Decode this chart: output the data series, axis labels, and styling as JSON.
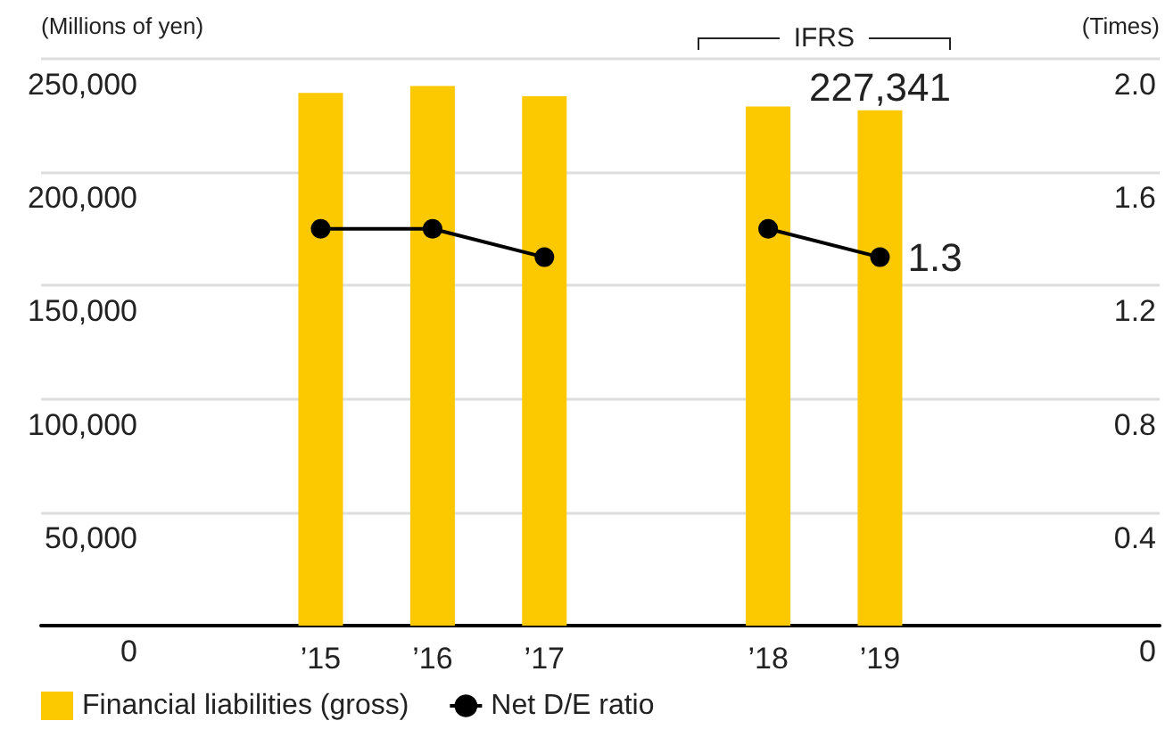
{
  "chart_data": {
    "type": "bar",
    "ylabel": "(Millions of yen)",
    "y2label": "(Times)",
    "annotations": [
      "IFRS"
    ],
    "categories": [
      null,
      null,
      "’15",
      "’16",
      "’17",
      null,
      "’18",
      "’19",
      null,
      null
    ],
    "series": [
      {
        "name": "Financial liabilities (gross)",
        "color": "#fcc800",
        "values": [
          null,
          null,
          235000,
          238000,
          233500,
          null,
          229000,
          227341,
          null,
          null
        ],
        "value_labels": [
          null,
          null,
          null,
          null,
          null,
          null,
          null,
          "227,341",
          null,
          null
        ]
      },
      {
        "name": "Net D/E ratio",
        "type": "line",
        "axis": "y2",
        "color": "#000000",
        "marker": "circle",
        "values": [
          null,
          null,
          1.4,
          1.4,
          1.3,
          null,
          1.4,
          1.3,
          null,
          null
        ],
        "value_labels": [
          null,
          null,
          null,
          null,
          null,
          null,
          null,
          "1.3",
          null,
          null
        ]
      }
    ],
    "ylim": [
      0,
      250000
    ],
    "yticks": [
      {
        "value": 0,
        "label": "0"
      },
      {
        "value": 50000,
        "label": "50,000"
      },
      {
        "value": 100000,
        "label": "100,000"
      },
      {
        "value": 150000,
        "label": "150,000"
      },
      {
        "value": 200000,
        "label": "200,000"
      },
      {
        "value": 250000,
        "label": "250,000"
      }
    ],
    "y2lim": [
      0,
      2
    ],
    "y2ticks": [
      {
        "value": 0,
        "label": "0"
      },
      {
        "value": 0.4,
        "label": "0.4"
      },
      {
        "value": 0.8,
        "label": "0.8"
      },
      {
        "value": 1.2,
        "label": "1.2"
      },
      {
        "value": 1.6,
        "label": "1.6"
      },
      {
        "value": 2,
        "label": "2.0"
      }
    ],
    "grid": "y",
    "legend": "bottom left"
  }
}
